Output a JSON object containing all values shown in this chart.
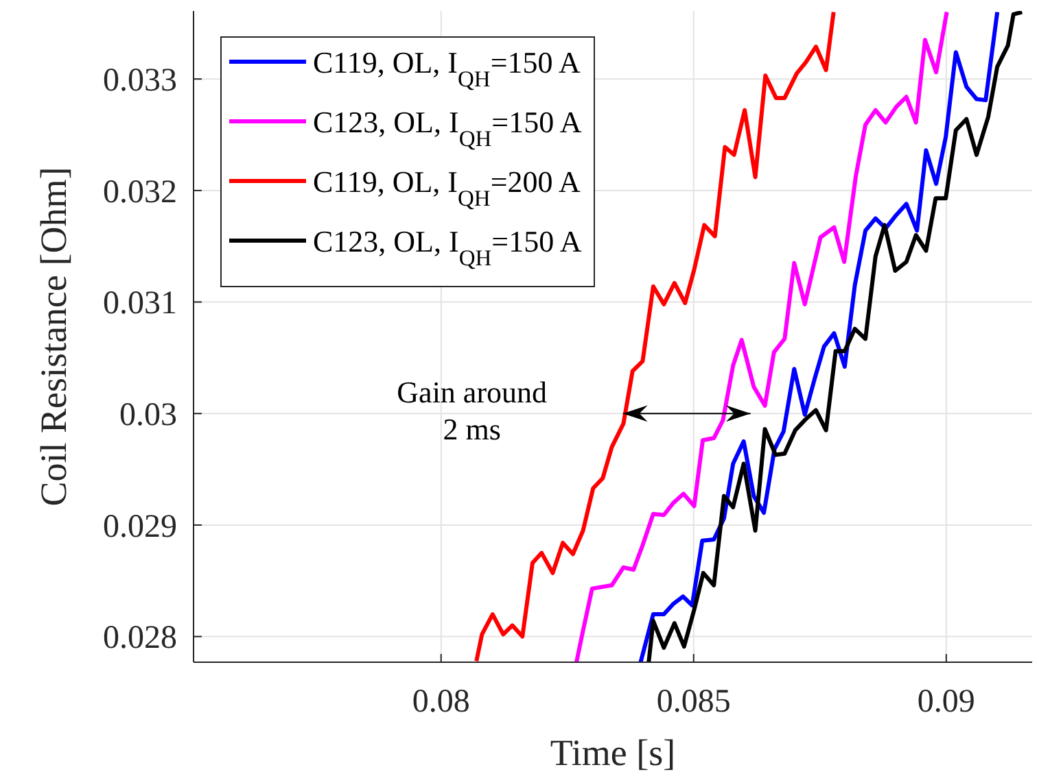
{
  "chart_data": {
    "type": "line",
    "xlabel": "Time [s]",
    "ylabel": "Coil Resistance [Ohm]",
    "xlim": [
      0.0751,
      0.0917
    ],
    "xticks": [
      0.08,
      0.085,
      0.09
    ],
    "ylim": [
      0.02777,
      0.03361
    ],
    "yticks": [
      0.028,
      0.029,
      0.03,
      0.031,
      0.032,
      0.033
    ],
    "grid": true,
    "legend": "top left",
    "line_style": "solid",
    "marker": "none",
    "annotations": [
      {
        "text": "Gain around\n2 ms",
        "x": 0.0836,
        "y": 0.03
      }
    ],
    "series": [
      {
        "name": "C119, OL, I$_{QH}$=150 A",
        "color": "#0000ff",
        "x": [
          0.08395,
          0.0842,
          0.08441,
          0.08459,
          0.08479,
          0.08497,
          0.08517,
          0.0854,
          0.0856,
          0.08578,
          0.08599,
          0.08619,
          0.08639,
          0.0866,
          0.08678,
          0.08699,
          0.0872,
          0.0874,
          0.08758,
          0.08778,
          0.08799,
          0.08819,
          0.0884,
          0.0886,
          0.0888,
          0.08901,
          0.08921,
          0.08942,
          0.0896,
          0.0898,
          0.08999,
          0.09019,
          0.0904,
          0.0906,
          0.09078,
          0.09101
        ],
        "values": [
          0.02777,
          0.0282,
          0.0282,
          0.02829,
          0.02836,
          0.02828,
          0.02886,
          0.02887,
          0.02906,
          0.02955,
          0.02975,
          0.02926,
          0.02911,
          0.02968,
          0.02984,
          0.0304,
          0.02999,
          0.03032,
          0.0306,
          0.03072,
          0.03042,
          0.03115,
          0.03164,
          0.03175,
          0.03166,
          0.03178,
          0.03188,
          0.03164,
          0.03236,
          0.03206,
          0.03248,
          0.03324,
          0.03293,
          0.03282,
          0.03281,
          0.0336
        ]
      },
      {
        "name": "C123, OL, I$_{QH}$=150 A",
        "color": "#ff00ff",
        "x": [
          0.08268,
          0.08279,
          0.08299,
          0.08338,
          0.08361,
          0.08381,
          0.08399,
          0.0842,
          0.08441,
          0.0846,
          0.0848,
          0.08501,
          0.08518,
          0.0854,
          0.08558,
          0.08578,
          0.08595,
          0.08619,
          0.08641,
          0.08659,
          0.0868,
          0.08699,
          0.0872,
          0.08751,
          0.08778,
          0.08798,
          0.08821,
          0.0884,
          0.0886,
          0.0888,
          0.08901,
          0.08921,
          0.0894,
          0.08958,
          0.0898,
          0.09001
        ],
        "values": [
          0.02777,
          0.02801,
          0.02843,
          0.02846,
          0.02862,
          0.0286,
          0.02882,
          0.0291,
          0.02909,
          0.0292,
          0.02928,
          0.02917,
          0.02976,
          0.02978,
          0.02994,
          0.03043,
          0.03066,
          0.03024,
          0.03007,
          0.03055,
          0.03067,
          0.03135,
          0.03098,
          0.03158,
          0.03167,
          0.03136,
          0.03213,
          0.03259,
          0.03272,
          0.03261,
          0.03275,
          0.03284,
          0.03261,
          0.03335,
          0.03306,
          0.0336
        ]
      },
      {
        "name": "C119, OL, I$_{QH}$=200 A",
        "color": "#ff0000",
        "x": [
          0.0807,
          0.08081,
          0.08102,
          0.08123,
          0.08141,
          0.08161,
          0.08181,
          0.08199,
          0.08221,
          0.08241,
          0.08261,
          0.08281,
          0.08301,
          0.0832,
          0.08338,
          0.08361,
          0.08379,
          0.08399,
          0.0842,
          0.08441,
          0.08462,
          0.08483,
          0.08501,
          0.08521,
          0.08542,
          0.08562,
          0.0858,
          0.08601,
          0.08622,
          0.08642,
          0.08663,
          0.0868,
          0.08704,
          0.08722,
          0.08742,
          0.08762,
          0.08777
        ],
        "values": [
          0.02778,
          0.02802,
          0.0282,
          0.02802,
          0.0281,
          0.028,
          0.02866,
          0.02875,
          0.02857,
          0.02884,
          0.02874,
          0.02895,
          0.02933,
          0.02942,
          0.0297,
          0.02991,
          0.03038,
          0.03047,
          0.03114,
          0.03098,
          0.03117,
          0.03099,
          0.03129,
          0.03169,
          0.03159,
          0.03239,
          0.03232,
          0.03272,
          0.03212,
          0.03303,
          0.03283,
          0.03283,
          0.03305,
          0.03315,
          0.03329,
          0.03308,
          0.0336
        ]
      },
      {
        "name": "C123, OL, I$_{QH}$=150 A",
        "color": "#000000",
        "x": [
          0.08411,
          0.0842,
          0.08441,
          0.08462,
          0.08481,
          0.08501,
          0.08519,
          0.0854,
          0.0856,
          0.08578,
          0.08599,
          0.08622,
          0.08641,
          0.08662,
          0.0868,
          0.08701,
          0.08722,
          0.08742,
          0.08762,
          0.08781,
          0.08799,
          0.08819,
          0.0884,
          0.0886,
          0.08878,
          0.08899,
          0.08921,
          0.0894,
          0.0896,
          0.08979,
          0.08999,
          0.09019,
          0.0904,
          0.0906,
          0.09083,
          0.09101,
          0.09122,
          0.09133,
          0.0915
        ],
        "values": [
          0.02777,
          0.02814,
          0.0279,
          0.02812,
          0.02791,
          0.02824,
          0.02857,
          0.02846,
          0.02926,
          0.02916,
          0.02955,
          0.02895,
          0.02986,
          0.02963,
          0.02964,
          0.02985,
          0.02995,
          0.03003,
          0.02985,
          0.03056,
          0.03056,
          0.03076,
          0.03067,
          0.03141,
          0.03169,
          0.03128,
          0.03136,
          0.0316,
          0.03146,
          0.03193,
          0.03193,
          0.03254,
          0.03264,
          0.03232,
          0.03266,
          0.03311,
          0.0333,
          0.03358,
          0.0336
        ]
      }
    ]
  }
}
